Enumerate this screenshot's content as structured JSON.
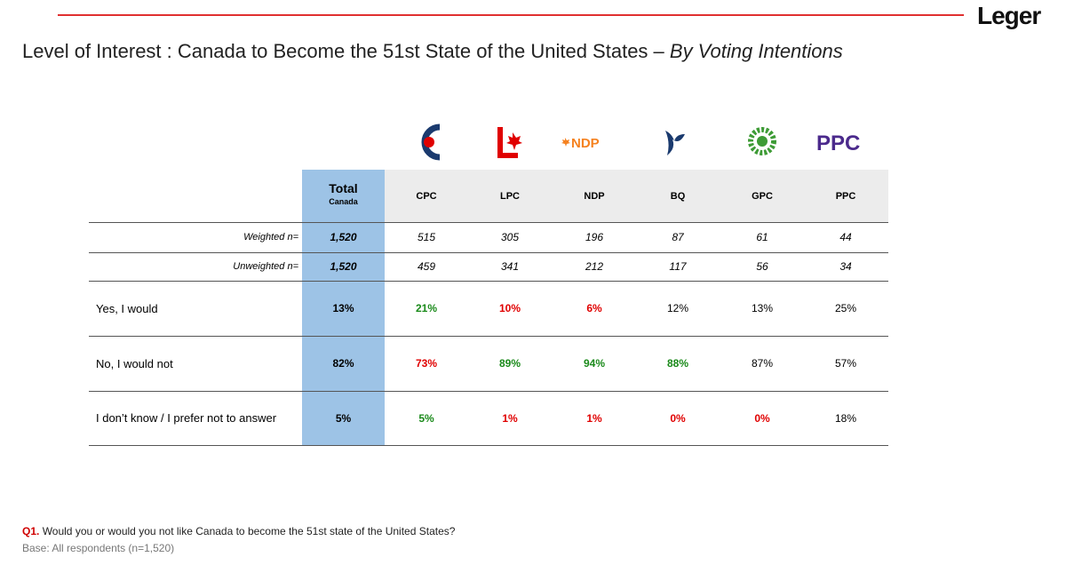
{
  "header": {
    "logo": "Leger",
    "title": "Level of Interest : Canada to Become the 51st State of the United States – ",
    "title_italic": "By Voting Intentions"
  },
  "logo_texts": {
    "ndp": "NDP",
    "ppc": "PPC"
  },
  "table": {
    "total_header": "Total",
    "total_subheader": "Canada",
    "columns": [
      "CPC",
      "LPC",
      "NDP",
      "BQ",
      "GPC",
      "PPC"
    ],
    "rows": [
      {
        "label": "Weighted n=",
        "total": "1,520",
        "values": [
          "515",
          "305",
          "196",
          "87",
          "61",
          "44"
        ],
        "colors": [
          "#000000",
          "#000000",
          "#000000",
          "#000000",
          "#000000",
          "#000000"
        ]
      },
      {
        "label": "Unweighted n=",
        "total": "1,520",
        "values": [
          "459",
          "341",
          "212",
          "117",
          "56",
          "34"
        ],
        "colors": [
          "#000000",
          "#000000",
          "#000000",
          "#000000",
          "#000000",
          "#000000"
        ]
      },
      {
        "label": "Yes, I would",
        "total": "13%",
        "values": [
          "21%",
          "10%",
          "6%",
          "12%",
          "13%",
          "25%"
        ],
        "colors": [
          "#1a8a1a",
          "#e00000",
          "#e00000",
          "#000000",
          "#000000",
          "#000000"
        ]
      },
      {
        "label": "No, I would not",
        "total": "82%",
        "values": [
          "73%",
          "89%",
          "94%",
          "88%",
          "87%",
          "57%"
        ],
        "colors": [
          "#e00000",
          "#1a8a1a",
          "#1a8a1a",
          "#1a8a1a",
          "#000000",
          "#000000"
        ]
      },
      {
        "label": "I don’t know / I prefer not to answer",
        "total": "5%",
        "values": [
          "5%",
          "1%",
          "1%",
          "0%",
          "0%",
          "18%"
        ],
        "colors": [
          "#1a8a1a",
          "#e00000",
          "#e00000",
          "#e00000",
          "#e00000",
          "#000000"
        ]
      }
    ]
  },
  "footer": {
    "question_id": "Q1.",
    "question": "Would you or would you not like Canada to become the 51st state of the United States?",
    "base": "Base: All respondents (n=1,520)"
  }
}
